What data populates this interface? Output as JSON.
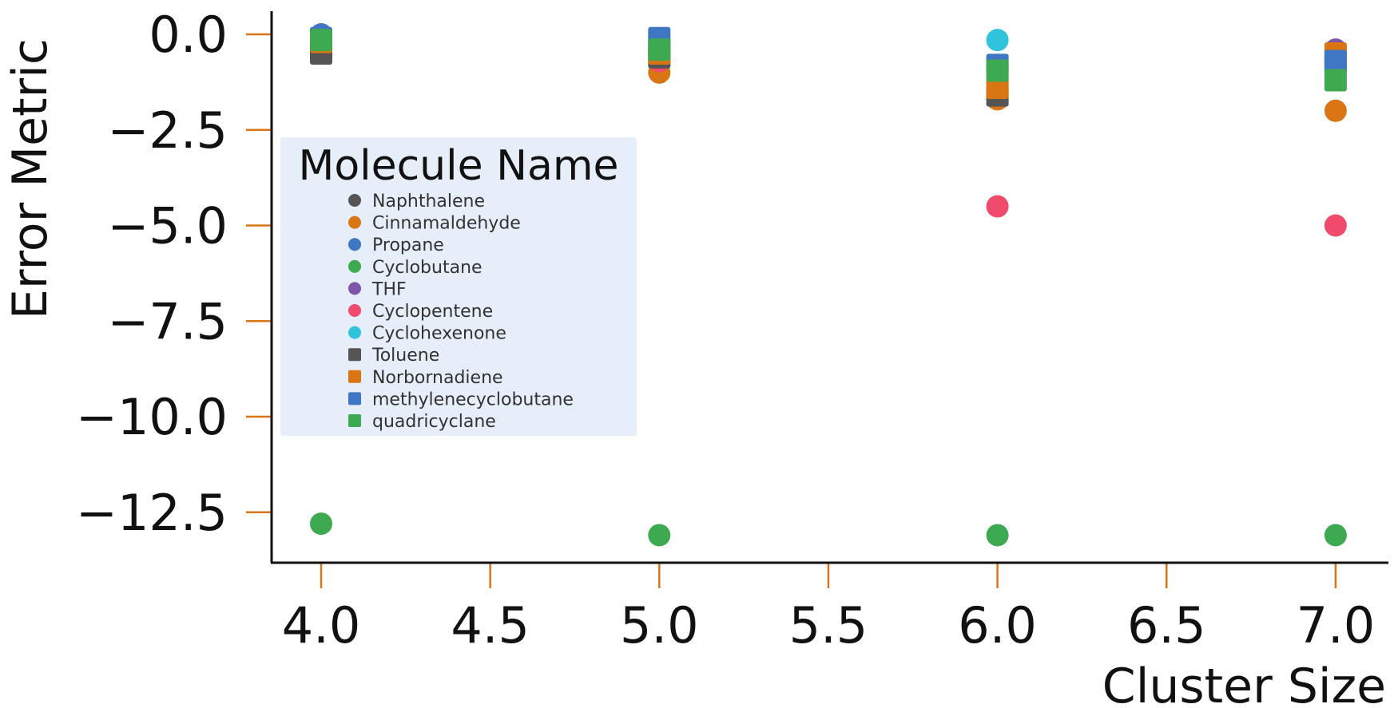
{
  "chart_data": {
    "type": "scatter",
    "title": "",
    "xlabel": "Cluster Size",
    "ylabel": "Error Metric",
    "xlim": [
      3.85,
      7.15
    ],
    "ylim": [
      -13.8,
      0.6
    ],
    "x_ticks": [
      4.0,
      4.5,
      5.0,
      5.5,
      6.0,
      6.5,
      7.0
    ],
    "y_ticks": [
      0.0,
      -2.5,
      -5.0,
      -7.5,
      -10.0,
      -12.5
    ],
    "x_tick_labels": [
      "4.0",
      "4.5",
      "5.0",
      "5.5",
      "6.0",
      "6.5",
      "7.0"
    ],
    "y_tick_labels": [
      "0.0",
      "−2.5",
      "−5.0",
      "−7.5",
      "−10.0",
      "−12.5"
    ],
    "grid": false,
    "tick_color": "#D97512",
    "legend": {
      "title": "Molecule Name",
      "placement": "center-left"
    },
    "series": [
      {
        "name": "Naphthalene",
        "marker": "circle",
        "color": "#555555",
        "x": [
          4,
          5,
          6,
          7
        ],
        "y": [
          -0.3,
          -0.6,
          -1.5,
          -0.6
        ]
      },
      {
        "name": "Cinnamaldehyde",
        "marker": "circle",
        "color": "#D97512",
        "x": [
          4,
          5,
          6,
          7
        ],
        "y": [
          -0.1,
          -1.0,
          -1.7,
          -2.0
        ]
      },
      {
        "name": "Propane",
        "marker": "circle",
        "color": "#3F77C5",
        "x": [
          4,
          5,
          6,
          7
        ],
        "y": [
          0.0,
          -0.2,
          -0.8,
          -0.6
        ]
      },
      {
        "name": "Cyclobutane",
        "marker": "circle",
        "color": "#3DAA52",
        "x": [
          4,
          5,
          6,
          7
        ],
        "y": [
          -12.8,
          -13.1,
          -13.1,
          -13.1
        ]
      },
      {
        "name": "THF",
        "marker": "circle",
        "color": "#7D56AC",
        "x": [
          4,
          5,
          6,
          7
        ],
        "y": [
          -0.1,
          -0.3,
          -0.9,
          -0.4
        ]
      },
      {
        "name": "Cyclopentene",
        "marker": "circle",
        "color": "#F04A6C",
        "x": [
          4,
          5,
          6,
          7
        ],
        "y": [
          -0.1,
          -0.7,
          -4.5,
          -5.0
        ]
      },
      {
        "name": "Cyclohexenone",
        "marker": "circle",
        "color": "#30C4DC",
        "x": [
          4,
          5,
          6,
          7
        ],
        "y": [
          -0.1,
          -0.3,
          -0.15,
          -0.7
        ]
      },
      {
        "name": "Toluene",
        "marker": "square",
        "color": "#555555",
        "x": [
          4,
          5,
          6,
          7
        ],
        "y": [
          -0.5,
          -0.6,
          -1.6,
          -0.7
        ]
      },
      {
        "name": "Norbornadiene",
        "marker": "square",
        "color": "#D97512",
        "x": [
          4,
          5,
          6,
          7
        ],
        "y": [
          -0.2,
          -0.5,
          -1.4,
          -0.5
        ]
      },
      {
        "name": "methylenecyclobutane",
        "marker": "square",
        "color": "#3F77C5",
        "x": [
          4,
          5,
          6,
          7
        ],
        "y": [
          -0.1,
          -0.1,
          -0.8,
          -0.7
        ]
      },
      {
        "name": "quadricyclane",
        "marker": "square",
        "color": "#3DAA52",
        "x": [
          4,
          5,
          6,
          7
        ],
        "y": [
          -0.15,
          -0.4,
          -0.95,
          -1.2
        ]
      }
    ]
  }
}
